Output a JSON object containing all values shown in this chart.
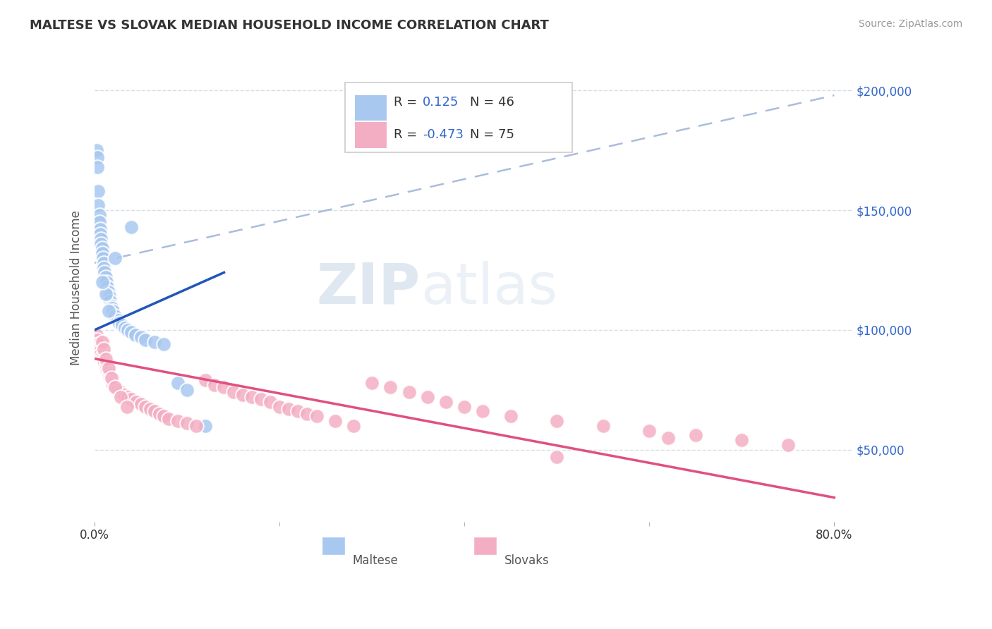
{
  "title": "MALTESE VS SLOVAK MEDIAN HOUSEHOLD INCOME CORRELATION CHART",
  "source": "Source: ZipAtlas.com",
  "ylabel": "Median Household Income",
  "y_ticks": [
    50000,
    100000,
    150000,
    200000
  ],
  "y_tick_labels": [
    "$50,000",
    "$100,000",
    "$150,000",
    "$200,000"
  ],
  "y_min": 20000,
  "y_max": 215000,
  "x_min": 0.0,
  "x_max": 0.82,
  "maltese_R": "0.125",
  "maltese_N": "46",
  "slovak_R": "-0.473",
  "slovak_N": "75",
  "maltese_color": "#a8c8f0",
  "slovak_color": "#f4aec4",
  "maltese_line_color": "#2255bb",
  "slovak_line_color": "#e05080",
  "dashed_line_color": "#aabcdd",
  "background_color": "#ffffff",
  "grid_color": "#d0dce8",
  "watermark_zip": "ZIP",
  "watermark_atlas": "atlas",
  "legend_R_color": "#3366cc",
  "legend_N_color": "#333333",
  "xtick_color": "#333333",
  "ytick_color": "#3366cc",
  "maltese_x": [
    0.002,
    0.003,
    0.003,
    0.004,
    0.004,
    0.005,
    0.005,
    0.006,
    0.006,
    0.007,
    0.007,
    0.008,
    0.008,
    0.009,
    0.01,
    0.01,
    0.011,
    0.012,
    0.013,
    0.014,
    0.015,
    0.016,
    0.017,
    0.018,
    0.019,
    0.02,
    0.022,
    0.025,
    0.027,
    0.03,
    0.033,
    0.036,
    0.04,
    0.044,
    0.05,
    0.055,
    0.065,
    0.075,
    0.09,
    0.1,
    0.12,
    0.04,
    0.022,
    0.012,
    0.015,
    0.008
  ],
  "maltese_y": [
    175000,
    172000,
    168000,
    158000,
    152000,
    148000,
    145000,
    142000,
    140000,
    138000,
    136000,
    134000,
    132000,
    130000,
    128000,
    126000,
    124000,
    122000,
    120000,
    118000,
    116000,
    114000,
    112000,
    110000,
    109000,
    108000,
    106000,
    104000,
    103000,
    102000,
    101000,
    100000,
    99000,
    98000,
    97000,
    96000,
    95000,
    94000,
    78000,
    75000,
    60000,
    143000,
    130000,
    115000,
    108000,
    120000
  ],
  "slovak_x": [
    0.002,
    0.003,
    0.004,
    0.005,
    0.006,
    0.007,
    0.008,
    0.009,
    0.01,
    0.011,
    0.012,
    0.013,
    0.014,
    0.015,
    0.016,
    0.017,
    0.018,
    0.019,
    0.02,
    0.022,
    0.025,
    0.028,
    0.032,
    0.036,
    0.04,
    0.045,
    0.05,
    0.055,
    0.06,
    0.065,
    0.07,
    0.075,
    0.08,
    0.09,
    0.1,
    0.11,
    0.12,
    0.13,
    0.14,
    0.15,
    0.16,
    0.17,
    0.18,
    0.19,
    0.2,
    0.21,
    0.22,
    0.23,
    0.24,
    0.26,
    0.28,
    0.3,
    0.32,
    0.34,
    0.36,
    0.38,
    0.4,
    0.42,
    0.45,
    0.5,
    0.55,
    0.6,
    0.65,
    0.7,
    0.75,
    0.008,
    0.01,
    0.012,
    0.015,
    0.018,
    0.022,
    0.028,
    0.035,
    0.5,
    0.62
  ],
  "slovak_y": [
    98000,
    96000,
    94000,
    92000,
    91000,
    90000,
    89000,
    88000,
    87000,
    86000,
    85000,
    84000,
    83000,
    82000,
    81000,
    80000,
    79000,
    78000,
    77000,
    76000,
    75000,
    74000,
    73000,
    72000,
    71000,
    70000,
    69000,
    68000,
    67000,
    66000,
    65000,
    64000,
    63000,
    62000,
    61000,
    60000,
    79000,
    77000,
    76000,
    74000,
    73000,
    72000,
    71000,
    70000,
    68000,
    67000,
    66000,
    65000,
    64000,
    62000,
    60000,
    78000,
    76000,
    74000,
    72000,
    70000,
    68000,
    66000,
    64000,
    62000,
    60000,
    58000,
    56000,
    54000,
    52000,
    95000,
    92000,
    88000,
    84000,
    80000,
    76000,
    72000,
    68000,
    47000,
    55000
  ],
  "maltese_trend_x0": 0.0,
  "maltese_trend_y0": 100000,
  "maltese_trend_x1": 0.14,
  "maltese_trend_y1": 124000,
  "slovak_trend_x0": 0.0,
  "slovak_trend_y0": 88000,
  "slovak_trend_x1": 0.8,
  "slovak_trend_y1": 30000,
  "dashed_trend_x0": 0.0,
  "dashed_trend_y0": 128000,
  "dashed_trend_x1": 0.8,
  "dashed_trend_y1": 198000
}
